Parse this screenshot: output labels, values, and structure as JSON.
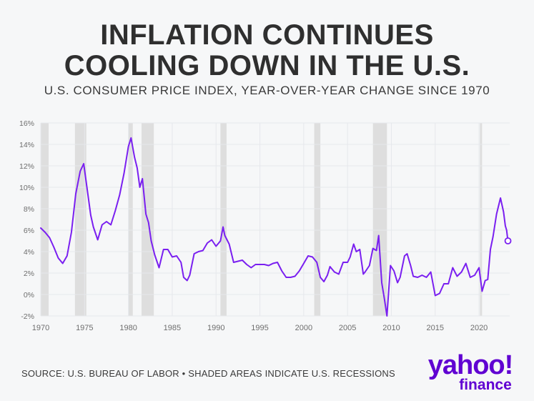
{
  "header": {
    "title_line1": "INFLATION CONTINUES",
    "title_line2": "COOLING DOWN IN THE U.S.",
    "subtitle": "U.S. CONSUMER PRICE INDEX, YEAR-OVER-YEAR CHANGE SINCE 1970"
  },
  "footer": {
    "source": "SOURCE: U.S. BUREAU OF LABOR • SHADED AREAS INDICATE U.S. RECESSIONS"
  },
  "logo": {
    "wordmark": "yahoo!",
    "sub": "finance"
  },
  "colors": {
    "line": "#7a1ff0",
    "recession": "#dedede",
    "grid": "#e6e8ec",
    "axis_text": "#6e6e6e",
    "logo": "#6001d2"
  },
  "chart_data": {
    "type": "line",
    "title": "INFLATION CONTINUES COOLING DOWN IN THE U.S.",
    "subtitle": "U.S. CONSUMER PRICE INDEX, YEAR-OVER-YEAR CHANGE SINCE 1970",
    "xlabel": "",
    "ylabel": "",
    "xlim": [
      1970,
      2023.5
    ],
    "ylim": [
      -2,
      16
    ],
    "x_ticks": [
      1970,
      1975,
      1980,
      1985,
      1990,
      1995,
      2000,
      2005,
      2010,
      2015,
      2020
    ],
    "y_ticks": [
      -2,
      0,
      2,
      4,
      6,
      8,
      10,
      12,
      14,
      16
    ],
    "y_tick_labels": [
      "-2%",
      "0%",
      "2%",
      "4%",
      "6%",
      "8%",
      "10%",
      "12%",
      "14%",
      "16%"
    ],
    "grid": true,
    "recessions": [
      [
        1970.0,
        1970.9
      ],
      [
        1973.9,
        1975.2
      ],
      [
        1980.0,
        1980.5
      ],
      [
        1981.5,
        1982.9
      ],
      [
        1990.5,
        1991.2
      ],
      [
        2001.2,
        2001.9
      ],
      [
        2007.9,
        2009.5
      ],
      [
        2020.1,
        2020.35
      ]
    ],
    "series": [
      {
        "values": [
          [
            1970.0,
            6.2
          ],
          [
            1970.5,
            5.8
          ],
          [
            1971.0,
            5.3
          ],
          [
            1971.5,
            4.4
          ],
          [
            1972.0,
            3.4
          ],
          [
            1972.5,
            2.9
          ],
          [
            1973.0,
            3.6
          ],
          [
            1973.5,
            5.8
          ],
          [
            1974.0,
            9.4
          ],
          [
            1974.5,
            11.5
          ],
          [
            1974.9,
            12.2
          ],
          [
            1975.3,
            9.8
          ],
          [
            1975.7,
            7.4
          ],
          [
            1976.0,
            6.3
          ],
          [
            1976.5,
            5.1
          ],
          [
            1977.0,
            6.5
          ],
          [
            1977.5,
            6.8
          ],
          [
            1978.0,
            6.5
          ],
          [
            1978.5,
            7.8
          ],
          [
            1979.0,
            9.3
          ],
          [
            1979.5,
            11.3
          ],
          [
            1980.0,
            13.8
          ],
          [
            1980.3,
            14.6
          ],
          [
            1980.7,
            12.8
          ],
          [
            1981.0,
            11.8
          ],
          [
            1981.3,
            10.0
          ],
          [
            1981.6,
            10.8
          ],
          [
            1982.0,
            7.5
          ],
          [
            1982.3,
            6.7
          ],
          [
            1982.6,
            5.0
          ],
          [
            1983.0,
            3.7
          ],
          [
            1983.5,
            2.5
          ],
          [
            1984.0,
            4.2
          ],
          [
            1984.5,
            4.2
          ],
          [
            1985.0,
            3.5
          ],
          [
            1985.5,
            3.6
          ],
          [
            1986.0,
            3.0
          ],
          [
            1986.3,
            1.6
          ],
          [
            1986.7,
            1.3
          ],
          [
            1987.0,
            1.8
          ],
          [
            1987.5,
            3.8
          ],
          [
            1988.0,
            4.0
          ],
          [
            1988.5,
            4.1
          ],
          [
            1989.0,
            4.8
          ],
          [
            1989.5,
            5.1
          ],
          [
            1990.0,
            4.5
          ],
          [
            1990.5,
            5.0
          ],
          [
            1990.8,
            6.3
          ],
          [
            1991.0,
            5.5
          ],
          [
            1991.5,
            4.7
          ],
          [
            1992.0,
            3.0
          ],
          [
            1992.5,
            3.1
          ],
          [
            1993.0,
            3.2
          ],
          [
            1993.5,
            2.8
          ],
          [
            1994.0,
            2.5
          ],
          [
            1994.5,
            2.8
          ],
          [
            1995.0,
            2.8
          ],
          [
            1995.5,
            2.8
          ],
          [
            1996.0,
            2.7
          ],
          [
            1996.5,
            2.9
          ],
          [
            1997.0,
            3.0
          ],
          [
            1997.5,
            2.2
          ],
          [
            1998.0,
            1.6
          ],
          [
            1998.5,
            1.6
          ],
          [
            1999.0,
            1.7
          ],
          [
            1999.5,
            2.2
          ],
          [
            2000.0,
            2.9
          ],
          [
            2000.5,
            3.6
          ],
          [
            2001.0,
            3.5
          ],
          [
            2001.5,
            3.0
          ],
          [
            2001.9,
            1.6
          ],
          [
            2002.3,
            1.2
          ],
          [
            2002.7,
            1.8
          ],
          [
            2003.0,
            2.6
          ],
          [
            2003.5,
            2.1
          ],
          [
            2004.0,
            1.9
          ],
          [
            2004.5,
            3.0
          ],
          [
            2005.0,
            3.0
          ],
          [
            2005.3,
            3.5
          ],
          [
            2005.7,
            4.7
          ],
          [
            2006.0,
            4.0
          ],
          [
            2006.4,
            4.2
          ],
          [
            2006.8,
            1.9
          ],
          [
            2007.0,
            2.1
          ],
          [
            2007.5,
            2.7
          ],
          [
            2007.9,
            4.3
          ],
          [
            2008.3,
            4.1
          ],
          [
            2008.55,
            5.5
          ],
          [
            2008.9,
            1.1
          ],
          [
            2009.2,
            -0.4
          ],
          [
            2009.5,
            -2.0
          ],
          [
            2009.9,
            2.7
          ],
          [
            2010.3,
            2.2
          ],
          [
            2010.7,
            1.1
          ],
          [
            2011.0,
            1.6
          ],
          [
            2011.5,
            3.6
          ],
          [
            2011.8,
            3.8
          ],
          [
            2012.2,
            2.7
          ],
          [
            2012.5,
            1.7
          ],
          [
            2013.0,
            1.6
          ],
          [
            2013.5,
            1.8
          ],
          [
            2014.0,
            1.6
          ],
          [
            2014.5,
            2.1
          ],
          [
            2015.0,
            -0.1
          ],
          [
            2015.5,
            0.1
          ],
          [
            2016.0,
            1.0
          ],
          [
            2016.5,
            1.0
          ],
          [
            2017.0,
            2.5
          ],
          [
            2017.5,
            1.7
          ],
          [
            2018.0,
            2.1
          ],
          [
            2018.5,
            2.9
          ],
          [
            2019.0,
            1.6
          ],
          [
            2019.5,
            1.8
          ],
          [
            2020.0,
            2.5
          ],
          [
            2020.35,
            0.3
          ],
          [
            2020.7,
            1.3
          ],
          [
            2021.0,
            1.4
          ],
          [
            2021.3,
            4.2
          ],
          [
            2021.6,
            5.4
          ],
          [
            2022.0,
            7.5
          ],
          [
            2022.45,
            9.0
          ],
          [
            2022.8,
            7.7
          ],
          [
            2023.0,
            6.4
          ],
          [
            2023.15,
            6.0
          ],
          [
            2023.3,
            5.0
          ]
        ]
      }
    ],
    "end_marker": [
      2023.3,
      5.0
    ]
  }
}
